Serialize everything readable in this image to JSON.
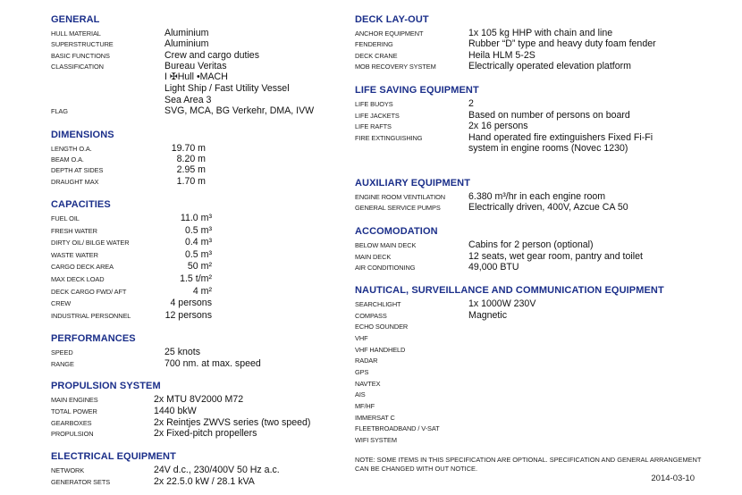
{
  "sections": [
    {
      "title": "GENERAL",
      "rows": [
        {
          "label": "HULL MATERIAL",
          "value": [
            "Aluminium"
          ]
        },
        {
          "label": "SUPERSTRUCTURE",
          "value": [
            "Aluminium"
          ]
        },
        {
          "label": "BASIC FUNCTIONS",
          "value": [
            "Crew and cargo duties"
          ]
        },
        {
          "label": "CLASSIFICATION",
          "value": [
            "Bureau Veritas",
            "I ✠Hull •MACH",
            "Light Ship / Fast Utility Vessel",
            "Sea Area 3"
          ]
        },
        {
          "label": "FLAG",
          "value": [
            "SVG, MCA, BG Verkehr, DMA, IVW"
          ]
        }
      ]
    },
    {
      "title": "DIMENSIONS",
      "rows": [
        {
          "label": "LENGTH O.A.",
          "value": [
            "19.70 m"
          ]
        },
        {
          "label": "BEAM O.A.",
          "value": [
            "8.20 m"
          ]
        },
        {
          "label": "DEPTH AT SIDES",
          "value": [
            "2.95 m"
          ]
        },
        {
          "label": "DRAUGHT MAX",
          "value": [
            "1.70 m"
          ]
        }
      ]
    },
    {
      "title": "CAPACITIES",
      "rows": [
        {
          "label": "FUEL OIL",
          "value": [
            "11.0 m³"
          ]
        },
        {
          "label": "FRESH WATER",
          "value": [
            "0.5 m³"
          ]
        },
        {
          "label": "DIRTY OIL/ BILGE WATER",
          "value": [
            "0.4 m³"
          ]
        },
        {
          "label": "WASTE WATER",
          "value": [
            "0.5 m³"
          ]
        },
        {
          "label": "CARGO DECK AREA",
          "value": [
            "50 m²"
          ]
        },
        {
          "label": "MAX DECK LOAD",
          "value": [
            "1.5 t/m²"
          ]
        },
        {
          "label": "DECK CARGO FWD/ AFT",
          "value": [
            "4 m²"
          ]
        },
        {
          "label": "CREW",
          "value": [
            "4 persons"
          ]
        },
        {
          "label": "INDUSTRIAL PERSONNEL",
          "value": [
            "12 persons"
          ]
        }
      ]
    },
    {
      "title": "PERFORMANCES",
      "rows": [
        {
          "label": "SPEED",
          "value": [
            "25 knots"
          ]
        },
        {
          "label": "RANGE",
          "value": [
            "700 nm. at max. speed"
          ]
        }
      ]
    },
    {
      "title": "PROPULSION SYSTEM",
      "rows": [
        {
          "label": "MAIN ENGINES",
          "value": [
            "2x MTU 8V2000 M72"
          ]
        },
        {
          "label": "TOTAL POWER",
          "value": [
            "1440 bkW"
          ]
        },
        {
          "label": "GEARBOXES",
          "value": [
            "2x Reintjes ZWVS series (two speed)"
          ]
        },
        {
          "label": "PROPULSION",
          "value": [
            "2x Fixed-pitch propellers"
          ]
        }
      ]
    },
    {
      "title": "ELECTRICAL EQUIPMENT",
      "rows": [
        {
          "label": "NETWORK",
          "value": [
            "24V d.c., 230/400V 50 Hz a.c."
          ]
        },
        {
          "label": "GENERATOR SETS",
          "value": [
            "2x 22.5.0 kW / 28.1 kVA"
          ]
        }
      ]
    },
    {
      "title": "DECK LAY-OUT",
      "rows": [
        {
          "label": "ANCHOR EQUIPMENT",
          "value": [
            "1x 105 kg HHP with chain and line"
          ]
        },
        {
          "label": "FENDERING",
          "value": [
            "Rubber “D” type and  heavy duty foam fender"
          ]
        },
        {
          "label": "DECK CRANE",
          "value": [
            "Heila HLM 5-2S"
          ]
        },
        {
          "label": "MOB RECOVERY SYSTEM",
          "value": [
            "Electrically operated elevation platform"
          ]
        }
      ]
    },
    {
      "title": "LIFE SAVING EQUIPMENT",
      "rows": [
        {
          "label": "LIFE BUOYS",
          "value": [
            "2"
          ]
        },
        {
          "label": "LIFE JACKETS",
          "value": [
            "Based on number of persons on board"
          ]
        },
        {
          "label": "LIFE RAFTS",
          "value": [
            "2x 16 persons"
          ]
        },
        {
          "label": "FIRE EXTINGUISHING",
          "value": [
            "Hand operated fire extinguishers Fixed Fi-Fi",
            "system in engine rooms (Novec 1230)"
          ]
        }
      ]
    },
    {
      "title": "AUXILIARY EQUIPMENT",
      "rows": [
        {
          "label": "ENGINE ROOM VENTILATION",
          "value": [
            "6.380 m³/hr in each engine room"
          ]
        },
        {
          "label": "GENERAL SERVICE PUMPS",
          "value": [
            "Electrically driven, 400V, Azcue CA 50"
          ]
        }
      ]
    },
    {
      "title": "ACCOMODATION",
      "rows": [
        {
          "label": "BELOW MAIN DECK",
          "value": [
            "Cabins for 2 person (optional)"
          ]
        },
        {
          "label": "MAIN DECK",
          "value": [
            "12 seats, wet gear room, pantry and toilet"
          ]
        },
        {
          "label": "AIR CONDITIONING",
          "value": [
            "49,000 BTU"
          ]
        }
      ]
    },
    {
      "title": "NAUTICAL, SURVEILLANCE AND COMMUNICATION EQUIPMENT",
      "rows": [
        {
          "label": "SEARCHLIGHT",
          "value": [
            "1x 1000W 230V"
          ]
        },
        {
          "label": "COMPASS",
          "value": [
            "Magnetic"
          ]
        },
        {
          "label": "ECHO SOUNDER",
          "value": []
        },
        {
          "label": "VHF",
          "value": []
        },
        {
          "label": "VHF HANDHELD",
          "value": []
        },
        {
          "label": "RADAR",
          "value": []
        },
        {
          "label": "GPS",
          "value": []
        },
        {
          "label": "NAVTEX",
          "value": []
        },
        {
          "label": "AIS",
          "value": []
        },
        {
          "label": "MF/HF",
          "value": []
        },
        {
          "label": "IMMERSAT C",
          "value": []
        },
        {
          "label": "FLEETBROADBAND / V-SAT",
          "value": []
        },
        {
          "label": "WIFI SYSTEM",
          "value": []
        }
      ]
    }
  ],
  "note": "NOTE: SOME ITEMS IN THIS SPECIFICATION ARE OPTIONAL. SPECIFICATION AND GENERAL ARRANGEMENT CAN BE CHANGED WITH OUT NOTICE.",
  "date": "2014-03-10",
  "colors": {
    "heading": "#1b2f8a",
    "text": "#111111"
  }
}
